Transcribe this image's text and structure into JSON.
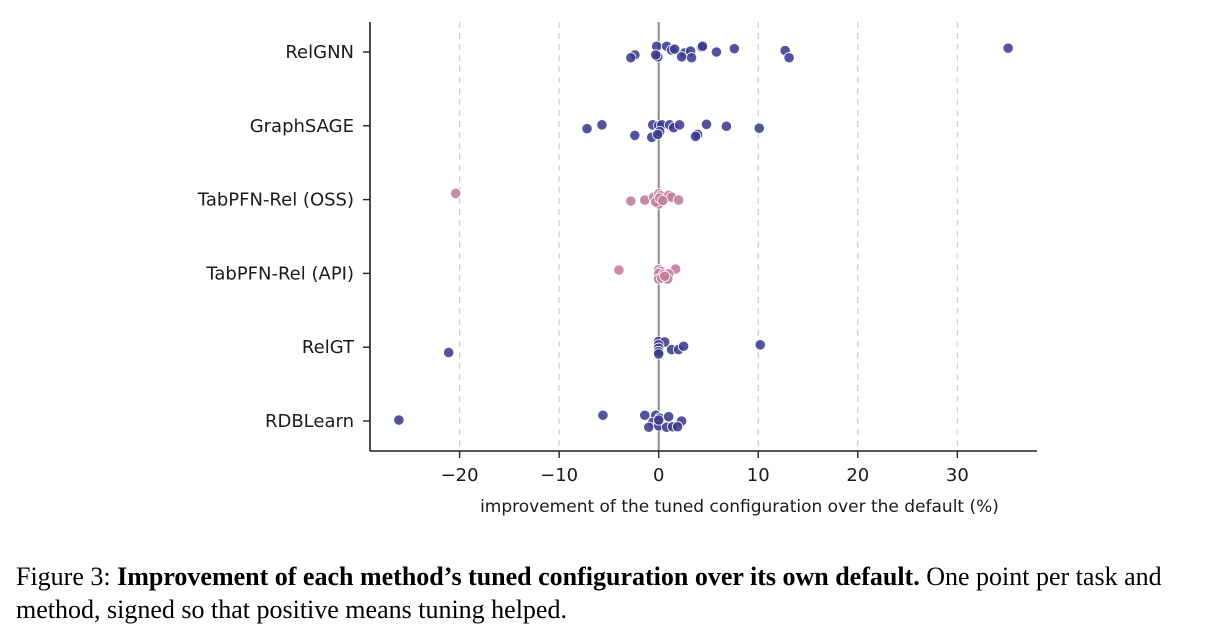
{
  "chart_data": {
    "type": "scatter",
    "xlabel": "improvement of the tuned configuration over the default (%)",
    "ylabel": "",
    "xlim": [
      -29,
      38
    ],
    "xticks": [
      -20,
      -10,
      0,
      10,
      20,
      30
    ],
    "xtick_labels": [
      "−20",
      "−10",
      "0",
      "10",
      "20",
      "30"
    ],
    "grid": "vertical dashed at x ticks",
    "reference_line": 0,
    "categories": [
      "RelGNN",
      "GraphSAGE",
      "TabPFN-Rel (OSS)",
      "TabPFN-Rel (API)",
      "RelGT",
      "RDBLearn"
    ],
    "series": [
      {
        "category": "RelGNN",
        "color": "#3b3b8f",
        "points": [
          {
            "x": -0.2,
            "j": 0.12
          },
          {
            "x": 0.8,
            "j": 0.12
          },
          {
            "x": 1.3,
            "j": 0.04
          },
          {
            "x": 1.6,
            "j": 0.06
          },
          {
            "x": 2.6,
            "j": -0.02
          },
          {
            "x": 3.2,
            "j": 0.02
          },
          {
            "x": 4.3,
            "j": 0.1
          },
          {
            "x": 4.4,
            "j": 0.12
          },
          {
            "x": 5.8,
            "j": 0.0
          },
          {
            "x": 7.6,
            "j": 0.07
          },
          {
            "x": 12.7,
            "j": 0.03
          },
          {
            "x": 13.1,
            "j": -0.12
          },
          {
            "x": 35.1,
            "j": 0.08
          },
          {
            "x": -2.4,
            "j": -0.06
          },
          {
            "x": -2.8,
            "j": -0.12
          },
          {
            "x": -0.1,
            "j": -0.1
          },
          {
            "x": -0.3,
            "j": -0.06
          },
          {
            "x": 2.3,
            "j": -0.1
          },
          {
            "x": 3.3,
            "j": -0.12
          }
        ]
      },
      {
        "category": "GraphSAGE",
        "color": "#3b3b8f",
        "points": [
          {
            "x": -7.2,
            "j": -0.06
          },
          {
            "x": -5.7,
            "j": 0.02
          },
          {
            "x": -0.6,
            "j": 0.02
          },
          {
            "x": 0.0,
            "j": 0.0
          },
          {
            "x": 0.3,
            "j": 0.02
          },
          {
            "x": 1.1,
            "j": 0.02
          },
          {
            "x": 1.5,
            "j": -0.04
          },
          {
            "x": 2.1,
            "j": 0.02
          },
          {
            "x": 4.8,
            "j": 0.03
          },
          {
            "x": 6.8,
            "j": -0.01
          },
          {
            "x": 10.1,
            "j": -0.05
          },
          {
            "x": -2.4,
            "j": -0.2
          },
          {
            "x": -0.7,
            "j": -0.24
          },
          {
            "x": 0.1,
            "j": -0.12
          },
          {
            "x": 3.9,
            "j": -0.18
          },
          {
            "x": 3.7,
            "j": -0.22
          },
          {
            "x": -0.1,
            "j": -0.18
          }
        ]
      },
      {
        "category": "TabPFN-Rel (OSS)",
        "color": "#c27c9c",
        "points": [
          {
            "x": -20.4,
            "j": 0.13
          },
          {
            "x": -2.8,
            "j": -0.03
          },
          {
            "x": -1.4,
            "j": -0.01
          },
          {
            "x": -0.5,
            "j": 0.05
          },
          {
            "x": 0.0,
            "j": 0.12
          },
          {
            "x": 0.2,
            "j": 0.08
          },
          {
            "x": 0.5,
            "j": 0.0
          },
          {
            "x": 1.0,
            "j": 0.09
          },
          {
            "x": 1.3,
            "j": 0.05
          },
          {
            "x": 2.0,
            "j": -0.01
          },
          {
            "x": 0.0,
            "j": -0.09
          },
          {
            "x": -0.3,
            "j": -0.05
          },
          {
            "x": 0.1,
            "j": 0.03
          },
          {
            "x": 0.4,
            "j": -0.02
          }
        ]
      },
      {
        "category": "TabPFN-Rel (API)",
        "color": "#c27c9c",
        "points": [
          {
            "x": -4.0,
            "j": 0.07
          },
          {
            "x": 0.0,
            "j": 0.08
          },
          {
            "x": 0.2,
            "j": 0.04
          },
          {
            "x": 1.7,
            "j": 0.09
          },
          {
            "x": 0.0,
            "j": 0.0
          },
          {
            "x": 0.5,
            "j": -0.02
          },
          {
            "x": 1.0,
            "j": -0.01
          },
          {
            "x": 0.0,
            "j": -0.12
          },
          {
            "x": 0.3,
            "j": -0.1
          },
          {
            "x": 0.9,
            "j": -0.12
          },
          {
            "x": 0.6,
            "j": -0.06
          }
        ]
      },
      {
        "category": "RelGT",
        "color": "#3b3b8f",
        "points": [
          {
            "x": -21.1,
            "j": -0.11
          },
          {
            "x": 0.0,
            "j": 0.12
          },
          {
            "x": 0.6,
            "j": 0.11
          },
          {
            "x": 0.0,
            "j": 0.05
          },
          {
            "x": 0.0,
            "j": -0.02
          },
          {
            "x": 0.0,
            "j": -0.09
          },
          {
            "x": 0.0,
            "j": -0.14
          },
          {
            "x": 1.3,
            "j": -0.05
          },
          {
            "x": 2.0,
            "j": -0.05
          },
          {
            "x": 2.5,
            "j": 0.02
          },
          {
            "x": 10.2,
            "j": 0.05
          }
        ]
      },
      {
        "category": "RDBLearn",
        "color": "#3b3b8f",
        "points": [
          {
            "x": -26.1,
            "j": 0.02
          },
          {
            "x": -5.6,
            "j": 0.12
          },
          {
            "x": -1.4,
            "j": 0.12
          },
          {
            "x": -0.3,
            "j": 0.12
          },
          {
            "x": 0.1,
            "j": 0.06
          },
          {
            "x": 1.0,
            "j": 0.09
          },
          {
            "x": -0.6,
            "j": -0.03
          },
          {
            "x": 0.0,
            "j": -0.02
          },
          {
            "x": 2.3,
            "j": 0.0
          },
          {
            "x": -1.0,
            "j": -0.13
          },
          {
            "x": 0.0,
            "j": -0.1
          },
          {
            "x": 0.8,
            "j": -0.13
          },
          {
            "x": 1.4,
            "j": -0.12
          },
          {
            "x": 1.9,
            "j": -0.12
          },
          {
            "x": 0.0,
            "j": 0.02
          }
        ]
      }
    ]
  },
  "caption": {
    "prefix": "Figure 3: ",
    "bold": "Improvement of each method’s tuned configuration over its own default.",
    "rest": " One point per task and method, signed so that positive means tuning helped."
  }
}
